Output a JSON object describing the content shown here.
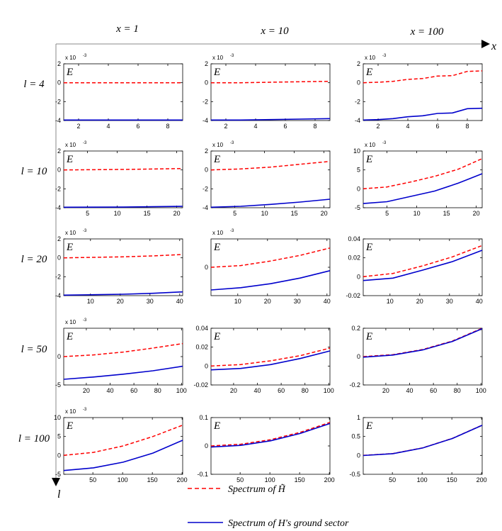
{
  "figure": {
    "x_axis_label": "x",
    "l_axis_label": "l",
    "column_labels": [
      "x = 1",
      "x = 10",
      "x = 100"
    ],
    "row_labels": [
      "l = 4",
      "l = 10",
      "l = 20",
      "l = 50",
      "l = 100"
    ],
    "panel_label": "E",
    "exponent_label": "x 10",
    "exponent_power": "-3",
    "colors": {
      "red": "#ff0000",
      "blue": "#0000cc"
    }
  },
  "legend": {
    "red_series": "Spectrum of H̃",
    "blue_series": "Spectrum of H's ground sector"
  },
  "chart_data": [
    {
      "type": "line",
      "row": 0,
      "col": 0,
      "xlim": [
        1,
        9
      ],
      "ylim": [
        -4,
        2
      ],
      "xticks": [
        2,
        4,
        6,
        8
      ],
      "yticks": [
        2,
        0,
        -2,
        -4
      ],
      "ytick_labels": [
        "2",
        "0",
        "-2",
        "-4"
      ],
      "exp": true,
      "series": [
        {
          "name": "Spectrum of H̃",
          "style": "dashed",
          "x": [
            1,
            9
          ],
          "values": [
            0,
            0
          ]
        },
        {
          "name": "Spectrum of H's ground sector",
          "style": "solid",
          "x": [
            1,
            9
          ],
          "values": [
            -3.95,
            -3.95
          ]
        }
      ]
    },
    {
      "type": "line",
      "row": 0,
      "col": 1,
      "xlim": [
        1,
        9
      ],
      "ylim": [
        -4,
        2
      ],
      "xticks": [
        2,
        4,
        6,
        8
      ],
      "yticks": [
        2,
        0,
        -2,
        -4
      ],
      "ytick_labels": [
        "2",
        "0",
        "-2",
        "-4"
      ],
      "exp": true,
      "series": [
        {
          "name": "Spectrum of H̃",
          "style": "dashed",
          "x": [
            1,
            3,
            5,
            7,
            9
          ],
          "values": [
            0,
            0,
            0.05,
            0.1,
            0.15
          ]
        },
        {
          "name": "Spectrum of H's ground sector",
          "style": "solid",
          "x": [
            1,
            3,
            5,
            7,
            9
          ],
          "values": [
            -3.95,
            -3.95,
            -3.9,
            -3.85,
            -3.8
          ]
        }
      ]
    },
    {
      "type": "line",
      "row": 0,
      "col": 2,
      "xlim": [
        1,
        9
      ],
      "ylim": [
        -4,
        2
      ],
      "xticks": [
        2,
        4,
        6,
        8
      ],
      "yticks": [
        2,
        0,
        -2,
        -4
      ],
      "ytick_labels": [
        "2",
        "0",
        "-2",
        "-4"
      ],
      "exp": true,
      "series": [
        {
          "name": "Spectrum of H̃",
          "style": "dashed",
          "x": [
            1,
            2,
            3,
            4,
            5,
            6,
            7,
            8,
            9
          ],
          "values": [
            0,
            0.05,
            0.15,
            0.35,
            0.45,
            0.7,
            0.75,
            1.2,
            1.25
          ]
        },
        {
          "name": "Spectrum of H's ground sector",
          "style": "solid",
          "x": [
            1,
            2,
            3,
            4,
            5,
            6,
            7,
            8,
            9
          ],
          "values": [
            -3.95,
            -3.9,
            -3.8,
            -3.6,
            -3.5,
            -3.25,
            -3.2,
            -2.75,
            -2.7
          ]
        }
      ]
    },
    {
      "type": "line",
      "row": 1,
      "col": 0,
      "xlim": [
        1,
        21
      ],
      "ylim": [
        -4,
        2
      ],
      "xticks": [
        5,
        10,
        15,
        20
      ],
      "yticks": [
        2,
        0,
        -2,
        -4
      ],
      "ytick_labels": [
        "2",
        "0",
        "-2",
        "-4"
      ],
      "exp": true,
      "series": [
        {
          "name": "Spectrum of H̃",
          "style": "dashed",
          "x": [
            1,
            11,
            21
          ],
          "values": [
            0,
            0.05,
            0.15
          ]
        },
        {
          "name": "Spectrum of H's ground sector",
          "style": "solid",
          "x": [
            1,
            11,
            21
          ],
          "values": [
            -3.95,
            -3.93,
            -3.85
          ]
        }
      ]
    },
    {
      "type": "line",
      "row": 1,
      "col": 1,
      "xlim": [
        1,
        21
      ],
      "ylim": [
        -4,
        2
      ],
      "xticks": [
        5,
        10,
        15,
        20
      ],
      "yticks": [
        2,
        0,
        -2,
        -4
      ],
      "ytick_labels": [
        "2",
        "0",
        "-2",
        "-4"
      ],
      "exp": true,
      "series": [
        {
          "name": "Spectrum of H̃",
          "style": "dashed",
          "x": [
            1,
            6,
            11,
            16,
            21
          ],
          "values": [
            0,
            0.1,
            0.3,
            0.6,
            0.9
          ]
        },
        {
          "name": "Spectrum of H's ground sector",
          "style": "solid",
          "x": [
            1,
            6,
            11,
            16,
            21
          ],
          "values": [
            -3.95,
            -3.85,
            -3.65,
            -3.4,
            -3.1
          ]
        }
      ]
    },
    {
      "type": "line",
      "row": 1,
      "col": 2,
      "xlim": [
        1,
        21
      ],
      "ylim": [
        -5,
        10
      ],
      "xticks": [
        5,
        10,
        15,
        20
      ],
      "yticks": [
        10,
        5,
        0,
        -5
      ],
      "ytick_labels": [
        "10",
        "5",
        "0",
        "-5"
      ],
      "exp": true,
      "series": [
        {
          "name": "Spectrum of H̃",
          "style": "dashed",
          "x": [
            1,
            5,
            9,
            13,
            17,
            21
          ],
          "values": [
            0,
            0.5,
            1.8,
            3.3,
            5.2,
            8
          ]
        },
        {
          "name": "Spectrum of H's ground sector",
          "style": "solid",
          "x": [
            1,
            5,
            9,
            13,
            17,
            21
          ],
          "values": [
            -3.9,
            -3.4,
            -2,
            -0.6,
            1.5,
            4
          ]
        }
      ]
    },
    {
      "type": "line",
      "row": 2,
      "col": 0,
      "xlim": [
        1,
        41
      ],
      "ylim": [
        -4,
        2
      ],
      "xticks": [
        10,
        20,
        30,
        40
      ],
      "yticks": [
        2,
        0,
        -2,
        -4
      ],
      "ytick_labels": [
        "2",
        "0",
        "-2",
        "-4"
      ],
      "exp": true,
      "series": [
        {
          "name": "Spectrum of H̃",
          "style": "dashed",
          "x": [
            1,
            11,
            21,
            31,
            41
          ],
          "values": [
            0,
            0.05,
            0.1,
            0.2,
            0.35
          ]
        },
        {
          "name": "Spectrum of H's ground sector",
          "style": "solid",
          "x": [
            1,
            11,
            21,
            31,
            41
          ],
          "values": [
            -3.95,
            -3.9,
            -3.85,
            -3.75,
            -3.6
          ]
        }
      ]
    },
    {
      "type": "line",
      "row": 2,
      "col": 1,
      "xlim": [
        1,
        41
      ],
      "ylim": [
        -5,
        5
      ],
      "xticks": [
        10,
        20,
        30,
        40
      ],
      "yticks": [
        0
      ],
      "ytick_labels": [
        "0"
      ],
      "exp": true,
      "series": [
        {
          "name": "Spectrum of H̃",
          "style": "dashed",
          "x": [
            1,
            11,
            21,
            31,
            41
          ],
          "values": [
            0,
            0.3,
            1.1,
            2.1,
            3.4
          ]
        },
        {
          "name": "Spectrum of H's ground sector",
          "style": "solid",
          "x": [
            1,
            11,
            21,
            31,
            41
          ],
          "values": [
            -4,
            -3.6,
            -2.9,
            -1.9,
            -0.6
          ]
        }
      ]
    },
    {
      "type": "line",
      "row": 2,
      "col": 2,
      "xlim": [
        1,
        41
      ],
      "ylim": [
        -0.02,
        0.04
      ],
      "xticks": [
        10,
        20,
        30,
        40
      ],
      "yticks": [
        0.04,
        0.02,
        0,
        -0.02
      ],
      "ytick_labels": [
        "0.04",
        "0.02",
        "0",
        "-0.02"
      ],
      "exp": false,
      "series": [
        {
          "name": "Spectrum of H̃",
          "style": "dashed",
          "x": [
            1,
            11,
            21,
            31,
            41
          ],
          "values": [
            0,
            0.0035,
            0.0115,
            0.021,
            0.033
          ]
        },
        {
          "name": "Spectrum of H's ground sector",
          "style": "solid",
          "x": [
            1,
            11,
            21,
            31,
            41
          ],
          "values": [
            -0.004,
            -0.0015,
            0.007,
            0.016,
            0.028
          ]
        }
      ]
    },
    {
      "type": "line",
      "row": 3,
      "col": 0,
      "xlim": [
        1,
        101
      ],
      "ylim": [
        -5,
        5
      ],
      "xticks": [
        20,
        40,
        60,
        80,
        100
      ],
      "yticks": [
        0,
        -5
      ],
      "ytick_labels": [
        "0",
        "-5"
      ],
      "exp": true,
      "series": [
        {
          "name": "Spectrum of H̃",
          "style": "dashed",
          "x": [
            1,
            26,
            51,
            76,
            101
          ],
          "values": [
            0,
            0.3,
            0.8,
            1.5,
            2.3
          ]
        },
        {
          "name": "Spectrum of H's ground sector",
          "style": "solid",
          "x": [
            1,
            26,
            51,
            76,
            101
          ],
          "values": [
            -4,
            -3.6,
            -3.1,
            -2.5,
            -1.7
          ]
        }
      ]
    },
    {
      "type": "line",
      "row": 3,
      "col": 1,
      "xlim": [
        1,
        101
      ],
      "ylim": [
        -0.02,
        0.04
      ],
      "xticks": [
        20,
        40,
        60,
        80,
        100
      ],
      "yticks": [
        0.04,
        0.02,
        0,
        -0.02
      ],
      "ytick_labels": [
        "0.04",
        "0.02",
        "0",
        "-0.02"
      ],
      "exp": false,
      "series": [
        {
          "name": "Spectrum of H̃",
          "style": "dashed",
          "x": [
            1,
            26,
            51,
            76,
            101
          ],
          "values": [
            0,
            0.0015,
            0.0055,
            0.011,
            0.019
          ]
        },
        {
          "name": "Spectrum of H's ground sector",
          "style": "solid",
          "x": [
            1,
            26,
            51,
            76,
            101
          ],
          "values": [
            -0.004,
            -0.0025,
            0.0015,
            0.008,
            0.016
          ]
        }
      ]
    },
    {
      "type": "line",
      "row": 3,
      "col": 2,
      "xlim": [
        1,
        101
      ],
      "ylim": [
        -0.2,
        0.2
      ],
      "xticks": [
        20,
        40,
        60,
        80,
        100
      ],
      "yticks": [
        0.2,
        0,
        -0.2
      ],
      "ytick_labels": [
        "0.2",
        "0",
        "-0.2"
      ],
      "exp": false,
      "series": [
        {
          "name": "Spectrum of H̃",
          "style": "dashed",
          "x": [
            1,
            26,
            51,
            76,
            101
          ],
          "values": [
            0,
            0.014,
            0.05,
            0.11,
            0.2
          ]
        },
        {
          "name": "Spectrum of H's ground sector",
          "style": "solid",
          "x": [
            1,
            26,
            51,
            76,
            101
          ],
          "values": [
            -0.004,
            0.011,
            0.047,
            0.107,
            0.197
          ]
        }
      ]
    },
    {
      "type": "line",
      "row": 4,
      "col": 0,
      "xlim": [
        1,
        201
      ],
      "ylim": [
        -5,
        10
      ],
      "xticks": [
        50,
        100,
        150,
        200
      ],
      "yticks": [
        10,
        5,
        0,
        -5
      ],
      "ytick_labels": [
        "10",
        "5",
        "0",
        "-5"
      ],
      "exp": true,
      "series": [
        {
          "name": "Spectrum of H̃",
          "style": "dashed",
          "x": [
            1,
            51,
            101,
            151,
            201
          ],
          "values": [
            0,
            0.8,
            2.5,
            5,
            8
          ]
        },
        {
          "name": "Spectrum of H's ground sector",
          "style": "solid",
          "x": [
            1,
            51,
            101,
            151,
            201
          ],
          "values": [
            -4,
            -3.3,
            -1.8,
            0.6,
            4
          ]
        }
      ]
    },
    {
      "type": "line",
      "row": 4,
      "col": 1,
      "xlim": [
        1,
        201
      ],
      "ylim": [
        -0.1,
        0.1
      ],
      "xticks": [
        50,
        100,
        150,
        200
      ],
      "yticks": [
        0.1,
        0,
        -0.1
      ],
      "ytick_labels": [
        "0.1",
        "0",
        "-0.1"
      ],
      "exp": false,
      "series": [
        {
          "name": "Spectrum of H̃",
          "style": "dashed",
          "x": [
            1,
            51,
            101,
            151,
            201
          ],
          "values": [
            0,
            0.006,
            0.022,
            0.048,
            0.083
          ]
        },
        {
          "name": "Spectrum of H's ground sector",
          "style": "solid",
          "x": [
            1,
            51,
            101,
            151,
            201
          ],
          "values": [
            -0.004,
            0.002,
            0.018,
            0.044,
            0.079
          ]
        }
      ]
    },
    {
      "type": "line",
      "row": 4,
      "col": 2,
      "xlim": [
        1,
        201
      ],
      "ylim": [
        -0.5,
        1
      ],
      "xticks": [
        50,
        100,
        150,
        200
      ],
      "yticks": [
        1,
        0.5,
        0,
        -0.5
      ],
      "ytick_labels": [
        "1",
        "0.5",
        "0",
        "-0.5"
      ],
      "exp": false,
      "series": [
        {
          "name": "Spectrum of H̃",
          "style": "dashed",
          "x": [
            1,
            51,
            101,
            151,
            201
          ],
          "values": [
            0,
            0.05,
            0.2,
            0.45,
            0.8
          ]
        },
        {
          "name": "Spectrum of H's ground sector",
          "style": "solid",
          "x": [
            1,
            51,
            101,
            151,
            201
          ],
          "values": [
            -0.004,
            0.046,
            0.196,
            0.446,
            0.796
          ]
        }
      ]
    }
  ]
}
